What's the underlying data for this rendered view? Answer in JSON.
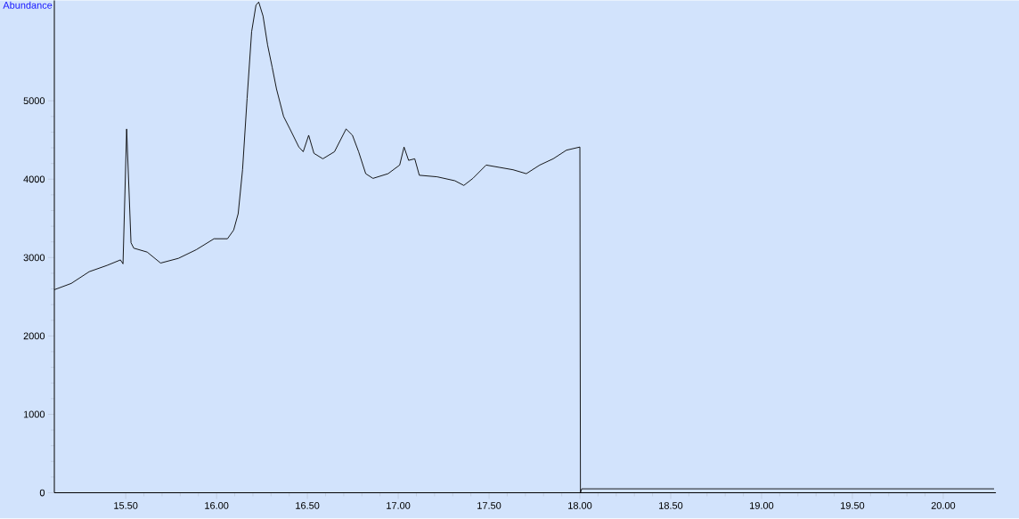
{
  "chart_data": {
    "type": "line",
    "ylabel": "Abundance",
    "x": [
      15.107,
      15.2,
      15.299,
      15.397,
      15.471,
      15.485,
      15.505,
      15.529,
      15.544,
      15.618,
      15.692,
      15.79,
      15.888,
      15.986,
      16.06,
      16.094,
      16.119,
      16.143,
      16.168,
      16.193,
      16.217,
      16.232,
      16.256,
      16.281,
      16.306,
      16.33,
      16.369,
      16.404,
      16.453,
      16.477,
      16.507,
      16.536,
      16.585,
      16.649,
      16.713,
      16.748,
      16.782,
      16.821,
      16.861,
      16.944,
      17.008,
      17.032,
      17.057,
      17.091,
      17.116,
      17.214,
      17.312,
      17.361,
      17.411,
      17.484,
      17.558,
      17.632,
      17.705,
      17.779,
      17.853,
      17.926,
      18.0,
      18.003,
      18.01,
      20.28
    ],
    "series": [
      {
        "color": "#000000",
        "values": [
          2590,
          2670,
          2820,
          2900,
          2970,
          2920,
          4640,
          3190,
          3120,
          3070,
          2930,
          2990,
          3100,
          3240,
          3240,
          3350,
          3560,
          4120,
          5030,
          5880,
          6220,
          6260,
          6080,
          5710,
          5430,
          5150,
          4800,
          4640,
          4410,
          4350,
          4560,
          4330,
          4260,
          4350,
          4640,
          4560,
          4350,
          4070,
          4010,
          4070,
          4180,
          4410,
          4240,
          4260,
          4050,
          4030,
          3980,
          3920,
          4010,
          4180,
          4150,
          4120,
          4070,
          4180,
          4260,
          4370,
          4410,
          0,
          50,
          50
        ]
      }
    ],
    "xlim": [
      15.107,
      20.29
    ],
    "ylim": [
      0,
      6280
    ],
    "xticks": [
      {
        "value": 15.5,
        "label": "15.50"
      },
      {
        "value": 16.0,
        "label": "16.00"
      },
      {
        "value": 16.5,
        "label": "16.50"
      },
      {
        "value": 17.0,
        "label": "17.00"
      },
      {
        "value": 17.5,
        "label": "17.50"
      },
      {
        "value": 18.0,
        "label": "18.00"
      },
      {
        "value": 18.5,
        "label": "18.50"
      },
      {
        "value": 19.0,
        "label": "19.00"
      },
      {
        "value": 19.5,
        "label": "19.50"
      },
      {
        "value": 20.0,
        "label": "20.00"
      }
    ],
    "yticks": [
      0,
      1000,
      2000,
      3000,
      4000,
      5000
    ],
    "grid": false,
    "marker": "none",
    "line_style": "solid"
  }
}
